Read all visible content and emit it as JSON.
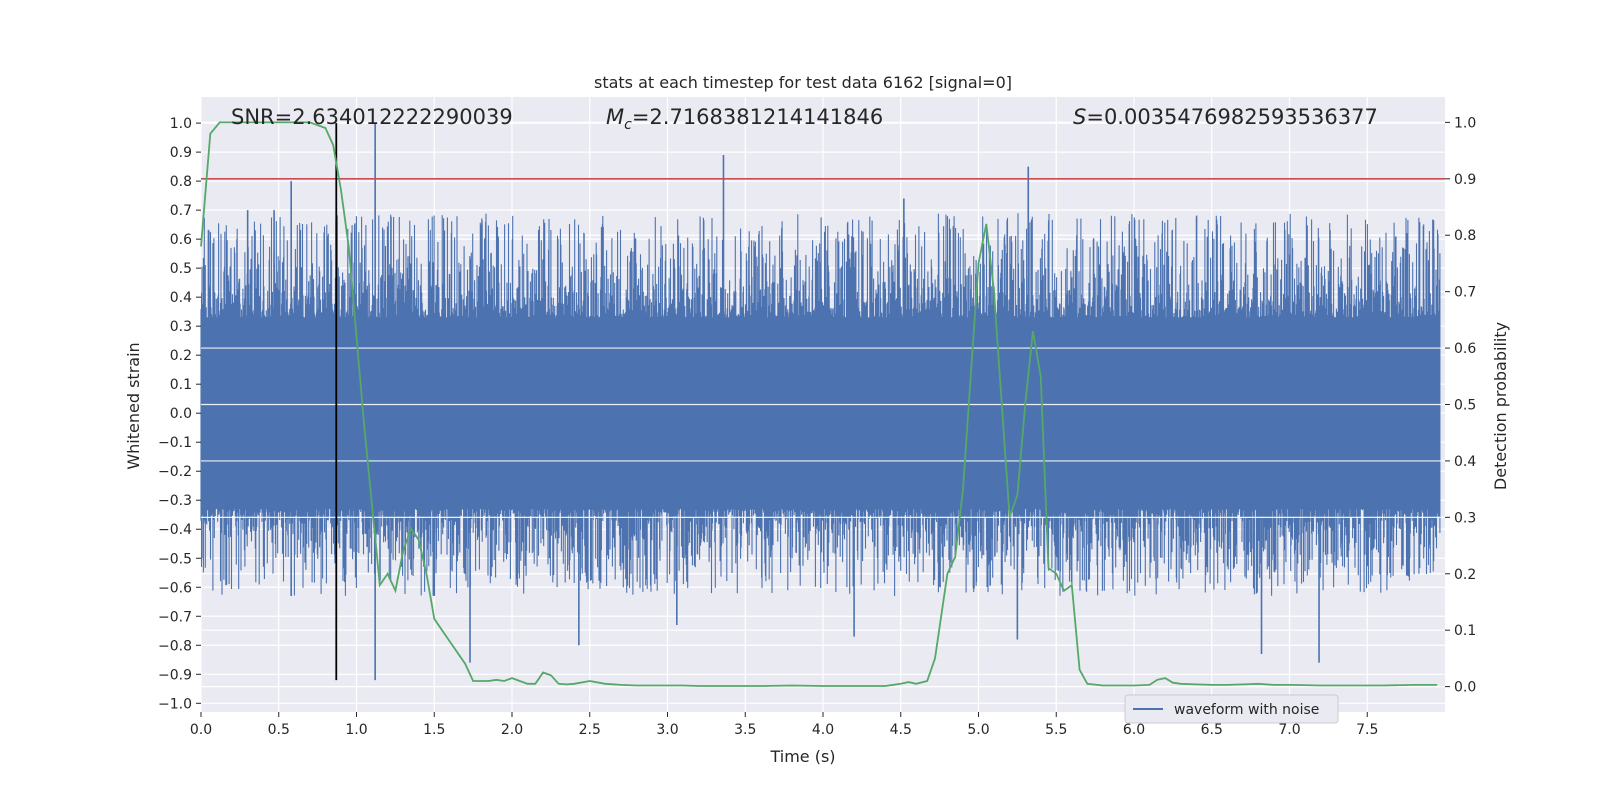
{
  "chart_data": {
    "type": "line",
    "title": "stats at each timestep for test data 6162 [signal=0]",
    "xlabel": "Time (s)",
    "ylabel_left": "Whitened strain",
    "ylabel_right": "Detection probability",
    "xlim": [
      0.0,
      8.0
    ],
    "ylim_left": [
      -1.03,
      1.09
    ],
    "ylim_right": [
      -0.045,
      1.045
    ],
    "x_ticks": [
      "0.0",
      "0.5",
      "1.0",
      "1.5",
      "2.0",
      "2.5",
      "3.0",
      "3.5",
      "4.0",
      "4.5",
      "5.0",
      "5.5",
      "6.0",
      "6.5",
      "7.0",
      "7.5"
    ],
    "x_tick_values": [
      0.0,
      0.5,
      1.0,
      1.5,
      2.0,
      2.5,
      3.0,
      3.5,
      4.0,
      4.5,
      5.0,
      5.5,
      6.0,
      6.5,
      7.0,
      7.5
    ],
    "y_left_ticks": [
      "1.0",
      "0.9",
      "0.8",
      "0.7",
      "0.6",
      "0.5",
      "0.4",
      "0.3",
      "0.2",
      "0.1",
      "0.0",
      "−0.1",
      "−0.2",
      "−0.3",
      "−0.4",
      "−0.5",
      "−0.6",
      "−0.7",
      "−0.8",
      "−0.9",
      "−1.0"
    ],
    "y_left_tick_values": [
      1.0,
      0.9,
      0.8,
      0.7,
      0.6,
      0.5,
      0.4,
      0.3,
      0.2,
      0.1,
      0.0,
      -0.1,
      -0.2,
      -0.3,
      -0.4,
      -0.5,
      -0.6,
      -0.7,
      -0.8,
      -0.9,
      -1.0
    ],
    "y_right_ticks": [
      "1.0",
      "0.9",
      "0.8",
      "0.7",
      "0.6",
      "0.5",
      "0.4",
      "0.3",
      "0.2",
      "0.1",
      "0.0"
    ],
    "y_right_tick_values": [
      1.0,
      0.9,
      0.8,
      0.7,
      0.6,
      0.5,
      0.4,
      0.3,
      0.2,
      0.1,
      0.0
    ],
    "annotations": {
      "snr": "SNR=2.634012222290039",
      "mc_symbol": "M",
      "mc_subscript": "c",
      "mc_value": "=2.7168381214141846",
      "s_symbol": "S",
      "s_value": "=0.0035476982593536377"
    },
    "threshold_right": 0.9,
    "vertical_marker_x": 0.87,
    "vertical_marker_range_left": [
      -0.92,
      1.0
    ],
    "waveform_envelope": {
      "name": "waveform with noise",
      "core_amplitude": 0.33,
      "spikes": [
        {
          "x": 0.05,
          "y": 0.63
        },
        {
          "x": 0.3,
          "y": 0.7
        },
        {
          "x": 0.47,
          "y": 0.7
        },
        {
          "x": 0.58,
          "y": 0.8
        },
        {
          "x": 0.58,
          "y": -0.63
        },
        {
          "x": 1.12,
          "y": 1.0
        },
        {
          "x": 1.12,
          "y": -0.92
        },
        {
          "x": 1.5,
          "y": -0.63
        },
        {
          "x": 1.73,
          "y": -0.86
        },
        {
          "x": 2.43,
          "y": -0.8
        },
        {
          "x": 3.06,
          "y": -0.73
        },
        {
          "x": 3.36,
          "y": 0.89
        },
        {
          "x": 4.2,
          "y": -0.77
        },
        {
          "x": 4.52,
          "y": 0.74
        },
        {
          "x": 5.25,
          "y": -0.78
        },
        {
          "x": 5.32,
          "y": 0.85
        },
        {
          "x": 6.82,
          "y": -0.83
        },
        {
          "x": 7.19,
          "y": -0.86
        }
      ]
    },
    "series": [
      {
        "name": "detection probability",
        "axis": "right",
        "color": "#55a868",
        "x": [
          0.0,
          0.06,
          0.12,
          0.2,
          0.3,
          0.4,
          0.5,
          0.6,
          0.7,
          0.8,
          0.85,
          0.9,
          0.95,
          1.0,
          1.05,
          1.1,
          1.15,
          1.2,
          1.25,
          1.3,
          1.35,
          1.4,
          1.45,
          1.5,
          1.6,
          1.7,
          1.75,
          1.8,
          1.85,
          1.9,
          1.95,
          2.0,
          2.05,
          2.1,
          2.15,
          2.2,
          2.25,
          2.3,
          2.35,
          2.4,
          2.5,
          2.6,
          2.7,
          2.8,
          3.0,
          3.1,
          3.2,
          3.4,
          3.6,
          3.8,
          4.0,
          4.2,
          4.4,
          4.5,
          4.55,
          4.6,
          4.67,
          4.72,
          4.8,
          4.85,
          4.9,
          4.95,
          5.0,
          5.05,
          5.1,
          5.15,
          5.2,
          5.25,
          5.3,
          5.35,
          5.4,
          5.45,
          5.5,
          5.55,
          5.6,
          5.65,
          5.7,
          5.8,
          5.9,
          6.0,
          6.1,
          6.15,
          6.2,
          6.25,
          6.3,
          6.4,
          6.5,
          6.6,
          6.7,
          6.8,
          6.85,
          6.9,
          7.0,
          7.2,
          7.4,
          7.6,
          7.8,
          7.95
        ],
        "values": [
          0.78,
          0.98,
          1.0,
          1.0,
          1.0,
          1.0,
          1.0,
          1.0,
          1.0,
          0.99,
          0.96,
          0.88,
          0.78,
          0.62,
          0.46,
          0.32,
          0.18,
          0.2,
          0.17,
          0.24,
          0.28,
          0.26,
          0.2,
          0.12,
          0.08,
          0.04,
          0.01,
          0.01,
          0.01,
          0.012,
          0.01,
          0.015,
          0.01,
          0.005,
          0.005,
          0.025,
          0.02,
          0.005,
          0.004,
          0.005,
          0.01,
          0.005,
          0.003,
          0.002,
          0.002,
          0.002,
          0.001,
          0.001,
          0.001,
          0.002,
          0.001,
          0.001,
          0.001,
          0.005,
          0.008,
          0.005,
          0.01,
          0.05,
          0.2,
          0.23,
          0.35,
          0.55,
          0.75,
          0.82,
          0.7,
          0.5,
          0.3,
          0.34,
          0.5,
          0.63,
          0.55,
          0.21,
          0.2,
          0.17,
          0.18,
          0.03,
          0.005,
          0.002,
          0.002,
          0.002,
          0.003,
          0.012,
          0.015,
          0.007,
          0.005,
          0.004,
          0.003,
          0.003,
          0.004,
          0.005,
          0.004,
          0.003,
          0.003,
          0.002,
          0.002,
          0.002,
          0.003,
          0.003
        ]
      },
      {
        "name": "threshold",
        "axis": "right",
        "color": "#c44e52"
      }
    ],
    "legend": {
      "entries": [
        "waveform with noise"
      ],
      "placement": "lower-right"
    },
    "grid": true
  },
  "colors": {
    "plot_background": "#eaeaf2",
    "grid": "#ffffff",
    "waveform": "#4c72b0",
    "probability": "#55a868",
    "threshold": "#c44e52",
    "marker": "#000000"
  }
}
